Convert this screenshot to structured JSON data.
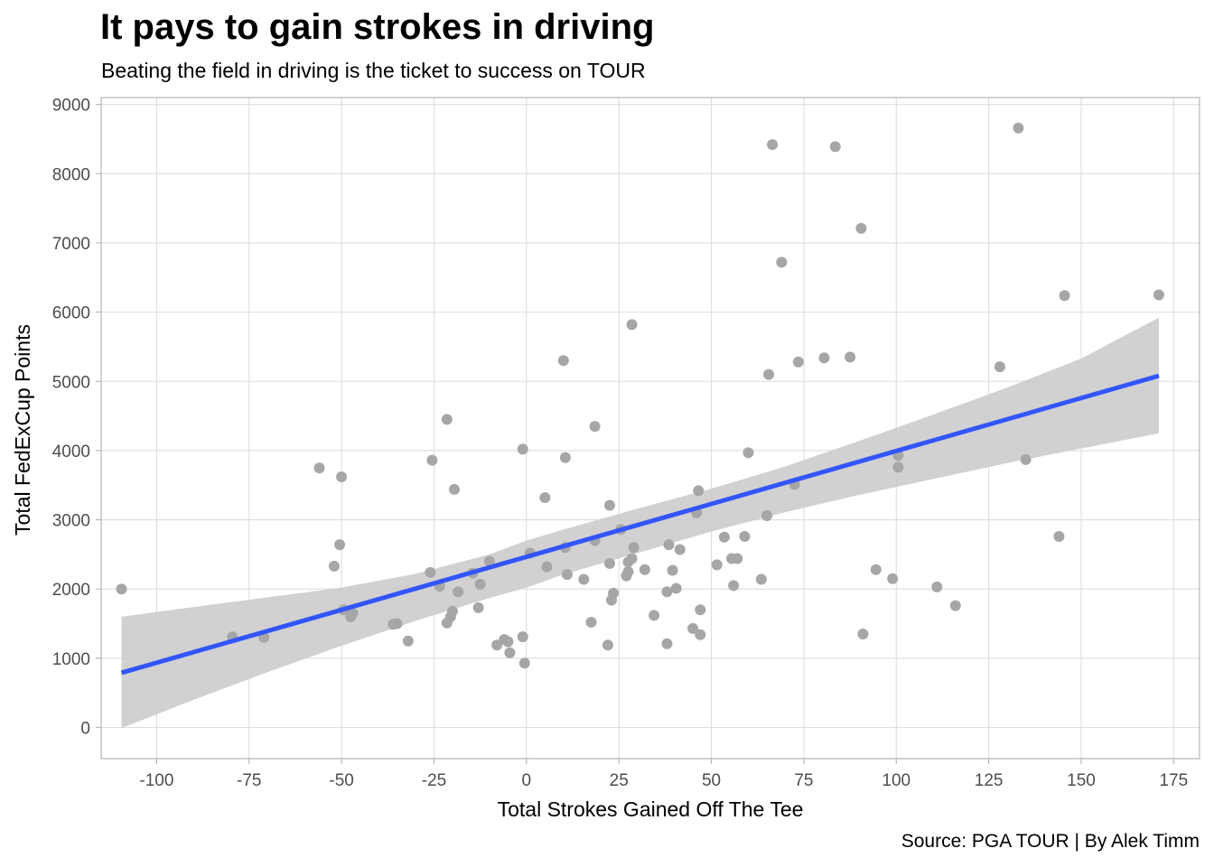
{
  "chart_data": {
    "type": "scatter",
    "title": "It pays to gain strokes in driving",
    "subtitle": "Beating the field in driving is the ticket to success on TOUR",
    "caption": "Source: PGA TOUR | By Alek Timm",
    "xlabel": "Total Strokes Gained Off The Tee",
    "ylabel": "Total FedExCup Points",
    "xlim": [
      -115,
      182
    ],
    "ylim": [
      -450,
      9100
    ],
    "x_ticks": [
      -100,
      -75,
      -50,
      -25,
      0,
      25,
      50,
      75,
      100,
      125,
      150,
      175
    ],
    "x_tick_labels": [
      "-100",
      "-75",
      "-50",
      "-25",
      "0",
      "25",
      "50",
      "75",
      "100",
      "125",
      "150",
      "175"
    ],
    "y_ticks": [
      0,
      1000,
      2000,
      3000,
      4000,
      5000,
      6000,
      7000,
      8000,
      9000
    ],
    "y_tick_labels": [
      "0",
      "1000",
      "2000",
      "3000",
      "4000",
      "5000",
      "6000",
      "7000",
      "8000",
      "9000"
    ],
    "grid": true,
    "point_color": "#a6a6a6",
    "points": [
      [
        -109.5,
        2000
      ],
      [
        -79.5,
        1310
      ],
      [
        -71,
        1300
      ],
      [
        -56,
        3750
      ],
      [
        -52,
        2330
      ],
      [
        -50.5,
        2640
      ],
      [
        -50,
        3620
      ],
      [
        -49.5,
        1700
      ],
      [
        -47.5,
        1600
      ],
      [
        -47,
        1650
      ],
      [
        -36,
        1490
      ],
      [
        -35,
        1500
      ],
      [
        -32,
        1250
      ],
      [
        -26,
        2240
      ],
      [
        -25.5,
        3860
      ],
      [
        -23.5,
        2040
      ],
      [
        -21.5,
        4450
      ],
      [
        -21.5,
        1510
      ],
      [
        -20.5,
        1600
      ],
      [
        -20,
        1680
      ],
      [
        -19.5,
        3440
      ],
      [
        -18.5,
        1960
      ],
      [
        -14.5,
        2230
      ],
      [
        -12.5,
        2070
      ],
      [
        -13,
        1730
      ],
      [
        -10,
        2400
      ],
      [
        -8,
        1190
      ],
      [
        -6,
        1270
      ],
      [
        -5,
        1240
      ],
      [
        -4.5,
        1080
      ],
      [
        -1,
        4020
      ],
      [
        -1,
        1310
      ],
      [
        -0.5,
        930
      ],
      [
        1,
        2520
      ],
      [
        5,
        3320
      ],
      [
        5.5,
        2320
      ],
      [
        10,
        5300
      ],
      [
        10.5,
        2600
      ],
      [
        10.5,
        3900
      ],
      [
        11,
        2210
      ],
      [
        15.5,
        2140
      ],
      [
        17.5,
        1520
      ],
      [
        18.5,
        2700
      ],
      [
        18.5,
        4350
      ],
      [
        22,
        1190
      ],
      [
        22.5,
        3210
      ],
      [
        22.5,
        2370
      ],
      [
        23,
        1840
      ],
      [
        23.5,
        1940
      ],
      [
        25.5,
        2860
      ],
      [
        27,
        2190
      ],
      [
        27.5,
        2250
      ],
      [
        27.5,
        2390
      ],
      [
        28.5,
        5820
      ],
      [
        28.5,
        2440
      ],
      [
        29,
        2600
      ],
      [
        32,
        2280
      ],
      [
        34.5,
        1620
      ],
      [
        38,
        1960
      ],
      [
        38,
        1210
      ],
      [
        38.5,
        2640
      ],
      [
        39.5,
        2270
      ],
      [
        40.5,
        2010
      ],
      [
        41.5,
        2570
      ],
      [
        45,
        1430
      ],
      [
        46,
        3100
      ],
      [
        46.5,
        3420
      ],
      [
        47,
        1700
      ],
      [
        47,
        1340
      ],
      [
        51.5,
        2350
      ],
      [
        53.5,
        2750
      ],
      [
        55.5,
        2440
      ],
      [
        56,
        2050
      ],
      [
        57,
        2440
      ],
      [
        59,
        2760
      ],
      [
        60,
        3970
      ],
      [
        63.5,
        2140
      ],
      [
        65,
        3060
      ],
      [
        65.5,
        5100
      ],
      [
        66.5,
        8420
      ],
      [
        69,
        6720
      ],
      [
        72.5,
        3510
      ],
      [
        73.5,
        5280
      ],
      [
        80.5,
        5340
      ],
      [
        83.5,
        8390
      ],
      [
        87.5,
        5350
      ],
      [
        90.5,
        7210
      ],
      [
        91,
        1350
      ],
      [
        94.5,
        2280
      ],
      [
        99,
        2150
      ],
      [
        100.5,
        3930
      ],
      [
        100.5,
        3760
      ],
      [
        111,
        2030
      ],
      [
        116,
        1760
      ],
      [
        128,
        5210
      ],
      [
        133,
        8660
      ],
      [
        135,
        3870
      ],
      [
        144,
        2760
      ],
      [
        145.5,
        6240
      ],
      [
        171,
        6250
      ]
    ],
    "trend_line": {
      "color": "#3355ff",
      "x": [
        -109.5,
        171
      ],
      "y": [
        790,
        5080
      ]
    },
    "confidence_band": {
      "color": "#cccccc",
      "x": [
        -109.5,
        -90,
        -70,
        -50,
        -30,
        -10,
        0,
        10,
        30,
        50,
        70,
        90,
        110,
        130,
        150,
        171
      ],
      "lower": [
        -10,
        400,
        800,
        1180,
        1540,
        1870,
        2020,
        2210,
        2520,
        2830,
        3110,
        3360,
        3590,
        3820,
        4030,
        4250
      ],
      "upper": [
        1600,
        1740,
        1880,
        2020,
        2220,
        2500,
        2700,
        2860,
        3160,
        3450,
        3770,
        4140,
        4520,
        4910,
        5330,
        5920
      ]
    }
  }
}
